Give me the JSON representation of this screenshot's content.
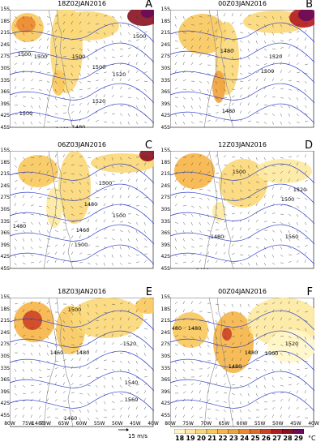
{
  "figure": {
    "panels": [
      {
        "id": "A",
        "letter": "A",
        "time": "18Z02JAN2016",
        "contours": [
          "1500",
          "1500",
          "1500",
          "1500",
          "1500",
          "1520",
          "1520",
          "1460",
          "1480",
          "1500"
        ]
      },
      {
        "id": "B",
        "letter": "B",
        "time": "00Z03JAN2016",
        "contours": [
          "1480",
          "1520",
          "1500",
          "1480",
          "1480",
          "1460"
        ]
      },
      {
        "id": "C",
        "letter": "C",
        "time": "06Z03JAN2016",
        "contours": [
          "1500",
          "1480",
          "1480",
          "1460",
          "1500",
          "1500",
          "1480"
        ]
      },
      {
        "id": "D",
        "letter": "D",
        "time": "12Z03JAN2016",
        "contours": [
          "1500",
          "1520",
          "1500",
          "1480",
          "1560",
          "1480"
        ]
      },
      {
        "id": "E",
        "letter": "E",
        "time": "18Z03JAN2016",
        "contours": [
          "1500",
          "1460",
          "1480",
          "1520",
          "1540",
          "1560",
          "1460",
          "1480"
        ]
      },
      {
        "id": "F",
        "letter": "F",
        "time": "00Z04JAN2016",
        "contours": [
          "480",
          "1480",
          "1480",
          "1500",
          "1480",
          "1520"
        ]
      }
    ],
    "y_ticks": [
      "15S",
      "18S",
      "21S",
      "24S",
      "27S",
      "30S",
      "33S",
      "36S",
      "39S",
      "42S",
      "45S"
    ],
    "x_ticks": [
      "80W",
      "75W",
      "70W",
      "65W",
      "60W",
      "55W",
      "50W",
      "45W",
      "40W"
    ],
    "vector_scale": {
      "value": "15",
      "unit": "m/s"
    },
    "colorbar": {
      "values": [
        "18",
        "19",
        "20",
        "21",
        "22",
        "23",
        "24",
        "25",
        "26",
        "27",
        "28",
        "29"
      ],
      "unit": "°C",
      "colors": [
        "#fff6c8",
        "#fde9a0",
        "#fbd877",
        "#f9c85c",
        "#f6b545",
        "#f2a13a",
        "#ec8a33",
        "#e06a2c",
        "#cc4227",
        "#b21b20",
        "#8a1020",
        "#6a0a5a"
      ]
    }
  }
}
